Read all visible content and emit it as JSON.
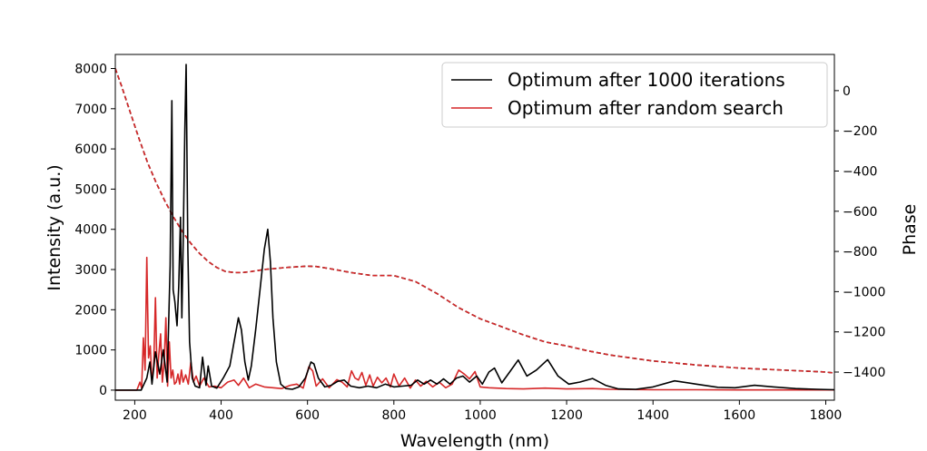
{
  "chart_data": {
    "type": "line",
    "title": "",
    "xlabel": "Wavelength (nm)",
    "ylabel": "Intensity (a.u.)",
    "y2label": "Phase",
    "xlim": [
      155,
      1820
    ],
    "ylim": [
      -250,
      8350
    ],
    "y2lim": [
      -1540,
      180
    ],
    "xticks": [
      200,
      400,
      600,
      800,
      1000,
      1200,
      1400,
      1600,
      1800
    ],
    "yticks": [
      0,
      1000,
      2000,
      3000,
      4000,
      5000,
      6000,
      7000,
      8000
    ],
    "y2ticks": [
      0,
      -200,
      -400,
      -600,
      -800,
      -1000,
      -1200,
      -1400
    ],
    "grid": false,
    "legend_position": "top-right",
    "series": [
      {
        "name": "Optimum after 1000 iterations",
        "color": "#000000",
        "axis": "left",
        "style": "solid",
        "x": [
          155,
          215,
          228,
          235,
          240,
          248,
          258,
          266,
          275,
          282,
          286,
          289,
          293,
          298,
          302,
          306,
          309,
          312,
          316,
          319,
          323,
          327,
          333,
          340,
          350,
          357,
          365,
          370,
          378,
          390,
          405,
          420,
          430,
          440,
          447,
          455,
          463,
          470,
          480,
          490,
          500,
          508,
          514,
          520,
          528,
          538,
          550,
          565,
          580,
          595,
          608,
          615,
          625,
          640,
          655,
          670,
          685,
          700,
          720,
          740,
          760,
          780,
          800,
          820,
          840,
          855,
          870,
          885,
          900,
          915,
          930,
          945,
          960,
          975,
          992,
          1005,
          1020,
          1033,
          1050,
          1068,
          1088,
          1108,
          1130,
          1156,
          1180,
          1205,
          1230,
          1260,
          1290,
          1320,
          1360,
          1400,
          1450,
          1500,
          1550,
          1590,
          1635,
          1680,
          1730,
          1780,
          1820
        ],
        "y": [
          0,
          0,
          300,
          700,
          150,
          950,
          400,
          1000,
          200,
          3100,
          7200,
          2500,
          2200,
          1600,
          2600,
          4300,
          1800,
          3600,
          6500,
          8100,
          3500,
          1200,
          300,
          100,
          60,
          820,
          120,
          600,
          100,
          50,
          300,
          600,
          1200,
          1800,
          1500,
          700,
          250,
          600,
          1500,
          2500,
          3500,
          4000,
          3200,
          1800,
          700,
          150,
          40,
          20,
          80,
          300,
          700,
          650,
          300,
          80,
          120,
          220,
          250,
          100,
          60,
          100,
          60,
          150,
          80,
          100,
          120,
          250,
          150,
          250,
          150,
          280,
          150,
          300,
          350,
          200,
          350,
          150,
          450,
          550,
          180,
          450,
          750,
          350,
          500,
          760,
          350,
          150,
          200,
          290,
          120,
          30,
          20,
          80,
          230,
          150,
          70,
          60,
          120,
          80,
          40,
          20,
          10
        ]
      },
      {
        "name": "Optimum after random search",
        "color": "#d62728",
        "axis": "left",
        "style": "solid",
        "x": [
          155,
          205,
          212,
          216,
          220,
          224,
          228,
          232,
          236,
          240,
          244,
          248,
          252,
          256,
          260,
          264,
          268,
          272,
          276,
          280,
          284,
          288,
          292,
          296,
          300,
          304,
          308,
          312,
          318,
          324,
          330,
          336,
          342,
          350,
          360,
          372,
          385,
          400,
          415,
          430,
          440,
          452,
          465,
          480,
          500,
          520,
          540,
          560,
          575,
          590,
          603,
          612,
          620,
          635,
          650,
          668,
          680,
          692,
          702,
          710,
          718,
          726,
          735,
          744,
          752,
          762,
          772,
          782,
          792,
          800,
          812,
          825,
          838,
          850,
          862,
          875,
          890,
          905,
          920,
          935,
          950,
          963,
          975,
          988,
          1000,
          1020,
          1060,
          1100,
          1150,
          1200,
          1260,
          1300,
          1400,
          1500,
          1600,
          1700,
          1820
        ],
        "y": [
          0,
          0,
          200,
          50,
          1300,
          500,
          3300,
          800,
          1100,
          200,
          600,
          2300,
          300,
          900,
          1400,
          200,
          700,
          1800,
          100,
          1200,
          300,
          500,
          150,
          200,
          400,
          150,
          500,
          200,
          380,
          150,
          700,
          200,
          350,
          100,
          300,
          80,
          100,
          60,
          200,
          250,
          120,
          300,
          60,
          150,
          80,
          60,
          40,
          120,
          150,
          50,
          580,
          480,
          100,
          280,
          60,
          260,
          200,
          80,
          480,
          300,
          250,
          440,
          120,
          380,
          100,
          320,
          180,
          300,
          80,
          400,
          100,
          300,
          50,
          250,
          100,
          220,
          80,
          200,
          60,
          150,
          500,
          400,
          280,
          460,
          80,
          60,
          40,
          30,
          50,
          30,
          40,
          20,
          10,
          10,
          5,
          5,
          5
        ]
      },
      {
        "name": "",
        "color": "#000000",
        "axis": "right",
        "style": "dashed",
        "x": [
          155,
          170,
          190,
          210,
          230,
          250,
          270,
          290,
          310,
          330,
          350,
          370,
          390,
          410,
          430,
          450,
          470,
          500,
          550,
          600,
          620,
          650,
          700,
          750,
          800,
          850,
          900,
          950,
          1000,
          1050,
          1100,
          1150,
          1200,
          1250,
          1300,
          1350,
          1400,
          1500,
          1600,
          1700,
          1800,
          1820
        ],
        "y": [
          110,
          20,
          -110,
          -240,
          -360,
          -460,
          -550,
          -630,
          -700,
          -760,
          -810,
          -850,
          -880,
          -900,
          -905,
          -905,
          -900,
          -890,
          -880,
          -873,
          -875,
          -885,
          -905,
          -920,
          -920,
          -950,
          -1010,
          -1080,
          -1135,
          -1175,
          -1215,
          -1250,
          -1270,
          -1295,
          -1315,
          -1330,
          -1345,
          -1365,
          -1380,
          -1390,
          -1400,
          -1405
        ]
      },
      {
        "name": "",
        "color": "#d62728",
        "axis": "right",
        "style": "dashed",
        "x": [
          155,
          170,
          190,
          210,
          230,
          250,
          270,
          290,
          310,
          330,
          350,
          370,
          390,
          410,
          430,
          450,
          470,
          500,
          550,
          600,
          620,
          650,
          700,
          750,
          800,
          850,
          900,
          950,
          1000,
          1050,
          1100,
          1150,
          1200,
          1250,
          1300,
          1350,
          1400,
          1500,
          1600,
          1700,
          1800,
          1820
        ],
        "y": [
          110,
          20,
          -110,
          -240,
          -360,
          -460,
          -550,
          -630,
          -700,
          -760,
          -810,
          -850,
          -880,
          -900,
          -905,
          -905,
          -900,
          -890,
          -880,
          -873,
          -875,
          -885,
          -905,
          -920,
          -920,
          -950,
          -1010,
          -1080,
          -1135,
          -1175,
          -1215,
          -1250,
          -1270,
          -1295,
          -1315,
          -1330,
          -1345,
          -1365,
          -1380,
          -1390,
          -1400,
          -1405
        ]
      }
    ]
  }
}
